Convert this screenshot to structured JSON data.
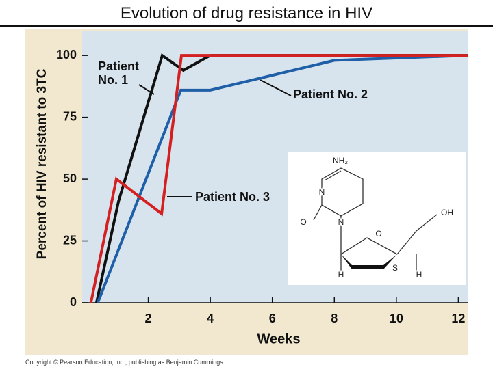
{
  "chart_data": {
    "type": "line",
    "title": "Evolution of drug resistance in HIV",
    "x_label": "Weeks",
    "y_label": "Percent of HIV resistant to 3TC",
    "xlim": [
      0,
      12.3
    ],
    "xticks": [
      2,
      4,
      6,
      8,
      10,
      12
    ],
    "ylim": [
      0,
      110
    ],
    "yticks": [
      0,
      25,
      50,
      75,
      100
    ],
    "series": [
      {
        "name": "Patient No. 1",
        "color": "#111111",
        "x": [
          0.33,
          1.04,
          2.45,
          3.13,
          4.0,
          12.3
        ],
        "values": [
          0,
          41,
          100,
          94,
          100,
          100
        ]
      },
      {
        "name": "Patient No. 2",
        "color": "#1f5fa8",
        "x": [
          0.37,
          3.05,
          4.0,
          8.0,
          12.3
        ],
        "values": [
          0,
          86,
          86,
          98,
          100
        ]
      },
      {
        "name": "Patient No. 3",
        "color": "#d42020",
        "x": [
          0.15,
          0.97,
          2.43,
          3.07,
          12.3
        ],
        "values": [
          0,
          50,
          36,
          100,
          100
        ]
      }
    ]
  },
  "structure_labels": [
    "NH₂",
    "N",
    "O",
    "N",
    "O",
    "OH",
    "H",
    "S",
    "H"
  ],
  "footer": "Copyright © Pearson Education, Inc., publishing as Benjamin Cummings"
}
